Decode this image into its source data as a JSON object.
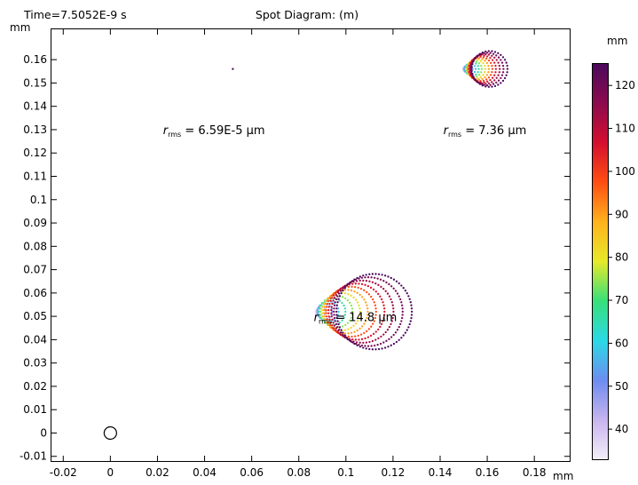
{
  "header": {
    "time_label": "Time=7.5052E-9 s",
    "title": "Spot Diagram: (m)"
  },
  "chart_data": {
    "type": "scatter",
    "title": "Spot Diagram: (m)",
    "x_unit": "mm",
    "y_unit": "mm",
    "xlim": [
      -0.025,
      0.195
    ],
    "ylim": [
      -0.012,
      0.173
    ],
    "x_ticks": [
      -0.02,
      0,
      0.02,
      0.04,
      0.06,
      0.08,
      0.1,
      0.12,
      0.14,
      0.16,
      0.18
    ],
    "x_tick_labels": [
      "-0.02",
      "0",
      "0.02",
      "0.04",
      "0.06",
      "0.08",
      "0.1",
      "0.12",
      "0.14",
      "0.16",
      "0.18"
    ],
    "y_ticks": [
      -0.01,
      0,
      0.01,
      0.02,
      0.03,
      0.04,
      0.05,
      0.06,
      0.07,
      0.08,
      0.09,
      0.1,
      0.11,
      0.12,
      0.13,
      0.14,
      0.15,
      0.16
    ],
    "y_tick_labels": [
      "-0.01",
      "0",
      "0.01",
      "0.02",
      "0.03",
      "0.04",
      "0.05",
      "0.06",
      "0.07",
      "0.08",
      "0.09",
      "0.1",
      "0.11",
      "0.12",
      "0.13",
      "0.14",
      "0.15",
      "0.16"
    ],
    "grid": false,
    "spots": [
      {
        "center": [
          0.052,
          0.156
        ],
        "rings": [
          {
            "cx": 0.052,
            "cy": 0.156,
            "r": 0.0,
            "c": 125
          }
        ],
        "rms_value": "6.59E-5",
        "rms_unit": "μm",
        "label_pos": [
          0.044,
          0.128
        ]
      },
      {
        "center": [
          0.156,
          0.156
        ],
        "rings": [
          {
            "cx": 0.1505,
            "cy": 0.156,
            "r": 0.0009,
            "c": 34
          },
          {
            "cx": 0.1512,
            "cy": 0.156,
            "r": 0.0013,
            "c": 42
          },
          {
            "cx": 0.152,
            "cy": 0.156,
            "r": 0.0018,
            "c": 50
          },
          {
            "cx": 0.1528,
            "cy": 0.156,
            "r": 0.0023,
            "c": 58
          },
          {
            "cx": 0.1536,
            "cy": 0.156,
            "r": 0.0028,
            "c": 66
          },
          {
            "cx": 0.1544,
            "cy": 0.156,
            "r": 0.0033,
            "c": 74
          },
          {
            "cx": 0.1553,
            "cy": 0.156,
            "r": 0.0039,
            "c": 82
          },
          {
            "cx": 0.1562,
            "cy": 0.156,
            "r": 0.0045,
            "c": 90
          },
          {
            "cx": 0.1571,
            "cy": 0.156,
            "r": 0.0051,
            "c": 98
          },
          {
            "cx": 0.158,
            "cy": 0.156,
            "r": 0.0057,
            "c": 106
          },
          {
            "cx": 0.159,
            "cy": 0.156,
            "r": 0.0063,
            "c": 113
          },
          {
            "cx": 0.16,
            "cy": 0.156,
            "r": 0.0069,
            "c": 119
          },
          {
            "cx": 0.161,
            "cy": 0.156,
            "r": 0.0076,
            "c": 125
          }
        ],
        "rms_value": "7.36",
        "rms_unit": "μm",
        "label_pos": [
          0.159,
          0.128
        ]
      },
      {
        "center": [
          0.1,
          0.052
        ],
        "rings": [
          {
            "cx": 0.088,
            "cy": 0.052,
            "r": 0.001,
            "c": 34
          },
          {
            "cx": 0.0895,
            "cy": 0.052,
            "r": 0.002,
            "c": 42
          },
          {
            "cx": 0.091,
            "cy": 0.052,
            "r": 0.0032,
            "c": 50
          },
          {
            "cx": 0.0925,
            "cy": 0.052,
            "r": 0.0044,
            "c": 58
          },
          {
            "cx": 0.0942,
            "cy": 0.052,
            "r": 0.0056,
            "c": 66
          },
          {
            "cx": 0.096,
            "cy": 0.052,
            "r": 0.0068,
            "c": 74
          },
          {
            "cx": 0.098,
            "cy": 0.052,
            "r": 0.008,
            "c": 82
          },
          {
            "cx": 0.1,
            "cy": 0.052,
            "r": 0.0093,
            "c": 90
          },
          {
            "cx": 0.1022,
            "cy": 0.052,
            "r": 0.0106,
            "c": 98
          },
          {
            "cx": 0.1045,
            "cy": 0.052,
            "r": 0.0119,
            "c": 106
          },
          {
            "cx": 0.107,
            "cy": 0.052,
            "r": 0.0132,
            "c": 113
          },
          {
            "cx": 0.1095,
            "cy": 0.052,
            "r": 0.0146,
            "c": 119
          },
          {
            "cx": 0.112,
            "cy": 0.052,
            "r": 0.016,
            "c": 125
          }
        ],
        "rms_value": "14.8",
        "rms_unit": "μm",
        "label_pos": [
          0.104,
          0.048
        ]
      }
    ],
    "marker_circle": {
      "x": 0,
      "y": 0
    },
    "colorbar": {
      "unit": "mm",
      "range": [
        33,
        125
      ],
      "ticks": [
        40,
        50,
        60,
        70,
        80,
        90,
        100,
        110,
        120
      ],
      "tick_labels": [
        "40",
        "50",
        "60",
        "70",
        "80",
        "90",
        "100",
        "110",
        "120"
      ],
      "colors": [
        "#f4eef9",
        "#c8b4ee",
        "#6e8cf0",
        "#2bd9e6",
        "#37e07a",
        "#e6ea2a",
        "#ffb21c",
        "#ff4e12",
        "#d40f2e",
        "#8c0a4e",
        "#4a0a5c"
      ]
    }
  }
}
